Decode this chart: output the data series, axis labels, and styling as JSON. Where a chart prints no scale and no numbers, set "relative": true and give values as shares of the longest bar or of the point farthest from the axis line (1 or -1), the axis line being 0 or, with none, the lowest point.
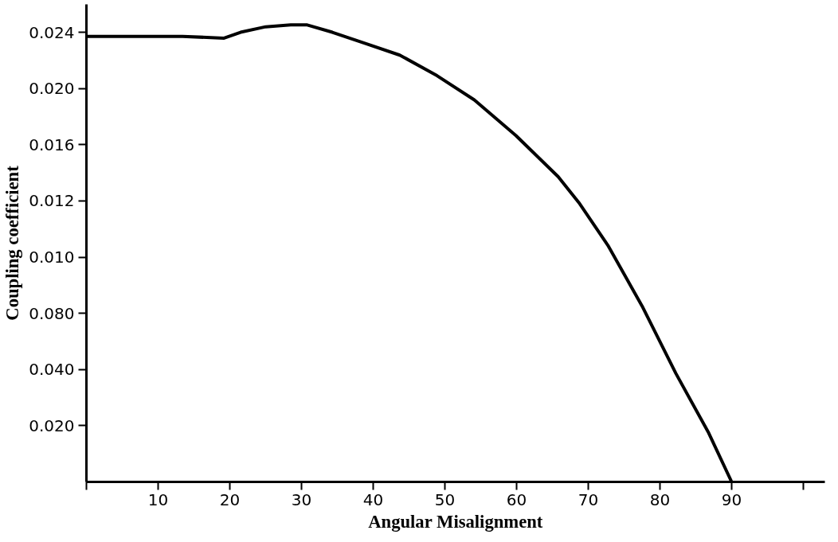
{
  "chart_data": {
    "type": "line",
    "xlabel": "Angular Misalignment",
    "ylabel": "Coupling coefficient",
    "relative": true,
    "annotations": [
      "0.020",
      "0.040",
      "0.080",
      "0.010",
      "0.012",
      "0.016",
      "0.020",
      "0.024"
    ],
    "series": [
      {
        "color": "#000000",
        "x": [
          0,
          5.2,
          13.4,
          19.2,
          21.5,
          25.0,
          28.5,
          30.8,
          34.3,
          39.0,
          43.7,
          48.9,
          54.1,
          59.9,
          65.8,
          68.7,
          72.8,
          77.5,
          82.2,
          86.8,
          90
        ],
        "values": [
          0.975,
          0.975,
          0.975,
          0.971,
          0.984,
          0.996,
          1,
          1,
          0.984,
          0.959,
          0.934,
          0.889,
          0.836,
          0.758,
          0.668,
          0.611,
          0.516,
          0.385,
          0.238,
          0.107,
          0
        ]
      }
    ],
    "xlim": [
      0,
      103
    ],
    "xticks": [
      {
        "value": 0,
        "label": null
      },
      10,
      20,
      30,
      40,
      50,
      60,
      70,
      80,
      90,
      {
        "value": 100,
        "label": null
      }
    ],
    "grid": false,
    "marker": "none",
    "line_style": "solid"
  }
}
